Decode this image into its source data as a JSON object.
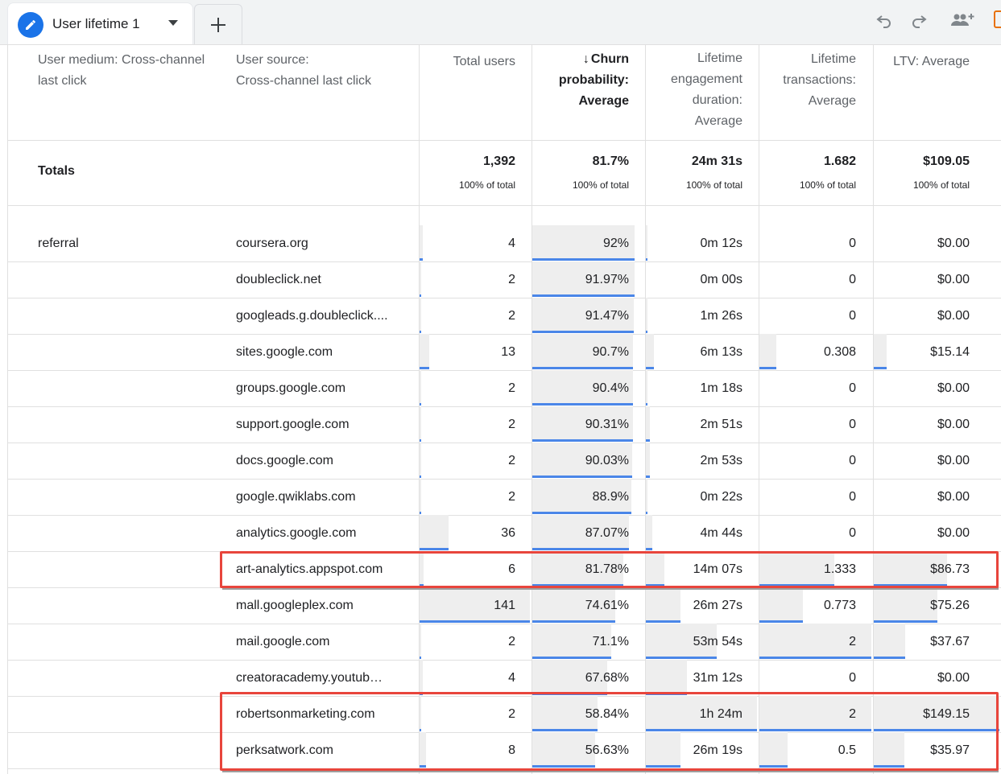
{
  "tab": {
    "label": "User lifetime 1"
  },
  "toolbar": {
    "icons": [
      "pencil-icon",
      "caret-down-icon",
      "add-icon",
      "undo-icon",
      "redo-icon",
      "share-people-icon",
      "export-icon"
    ]
  },
  "headers": {
    "medium": "User medium: Cross-channel last click",
    "source": "User source: Cross-channel last click",
    "total_users": "Total users",
    "churn": "Churn probability: Average",
    "engagement": "Lifetime engagement duration: Average",
    "transactions": "Lifetime transactions: Average",
    "ltv": "LTV: Average"
  },
  "header_lines": {
    "medium_1": "User medium: Cross-channel",
    "medium_2": "last click",
    "source_1": "User source:",
    "source_2": "Cross-channel last click",
    "churn_1": "Churn",
    "churn_2": "probability:",
    "churn_3": "Average",
    "engage_1": "Lifetime",
    "engage_2": "engagement",
    "engage_3": "duration:",
    "engage_4": "Average",
    "trans_1": "Lifetime",
    "trans_2": "transactions:",
    "trans_3": "Average"
  },
  "sort_arrow": "↓",
  "totals": {
    "label": "Totals",
    "total_users": "1,392",
    "churn": "81.7%",
    "engagement": "24m 31s",
    "transactions": "1.682",
    "ltv": "$109.05",
    "sub": "100% of total"
  },
  "medium_value": "referral",
  "rows": [
    {
      "source": "coursera.org",
      "users": "4",
      "churn": "92%",
      "engagement": "0m 12s",
      "transactions": "0",
      "ltv": "$0.00"
    },
    {
      "source": "doubleclick.net",
      "users": "2",
      "churn": "91.97%",
      "engagement": "0m 00s",
      "transactions": "0",
      "ltv": "$0.00"
    },
    {
      "source": "googleads.g.doubleclick....",
      "users": "2",
      "churn": "91.47%",
      "engagement": "1m 26s",
      "transactions": "0",
      "ltv": "$0.00"
    },
    {
      "source": "sites.google.com",
      "users": "13",
      "churn": "90.7%",
      "engagement": "6m 13s",
      "transactions": "0.308",
      "ltv": "$15.14"
    },
    {
      "source": "groups.google.com",
      "users": "2",
      "churn": "90.4%",
      "engagement": "1m 18s",
      "transactions": "0",
      "ltv": "$0.00"
    },
    {
      "source": "support.google.com",
      "users": "2",
      "churn": "90.31%",
      "engagement": "2m 51s",
      "transactions": "0",
      "ltv": "$0.00"
    },
    {
      "source": "docs.google.com",
      "users": "2",
      "churn": "90.03%",
      "engagement": "2m 53s",
      "transactions": "0",
      "ltv": "$0.00"
    },
    {
      "source": "google.qwiklabs.com",
      "users": "2",
      "churn": "88.9%",
      "engagement": "0m 22s",
      "transactions": "0",
      "ltv": "$0.00"
    },
    {
      "source": "analytics.google.com",
      "users": "36",
      "churn": "87.07%",
      "engagement": "4m 44s",
      "transactions": "0",
      "ltv": "$0.00"
    },
    {
      "source": "art-analytics.appspot.com",
      "users": "6",
      "churn": "81.78%",
      "engagement": "14m 07s",
      "transactions": "1.333",
      "ltv": "$86.73"
    },
    {
      "source": "mall.googleplex.com",
      "users": "141",
      "churn": "74.61%",
      "engagement": "26m 27s",
      "transactions": "0.773",
      "ltv": "$75.26"
    },
    {
      "source": "mail.google.com",
      "users": "2",
      "churn": "71.1%",
      "engagement": "53m 54s",
      "transactions": "2",
      "ltv": "$37.67"
    },
    {
      "source": "creatoracademy.youtub…",
      "users": "4",
      "churn": "67.68%",
      "engagement": "31m 12s",
      "transactions": "0",
      "ltv": "$0.00"
    },
    {
      "source": "robertsonmarketing.com",
      "users": "2",
      "churn": "58.84%",
      "engagement": "1h 24m",
      "transactions": "2",
      "ltv": "$149.15"
    },
    {
      "source": "perksatwork.com",
      "users": "8",
      "churn": "56.63%",
      "engagement": "26m 19s",
      "transactions": "0.5",
      "ltv": "$35.97"
    }
  ],
  "bars": {
    "users": [
      0.03,
      0.01,
      0.01,
      0.09,
      0.01,
      0.01,
      0.01,
      0.01,
      0.26,
      0.04,
      1.0,
      0.01,
      0.03,
      0.01,
      0.06
    ],
    "churn": [
      0.92,
      0.9197,
      0.9147,
      0.907,
      0.904,
      0.9031,
      0.9003,
      0.889,
      0.8707,
      0.8178,
      0.7461,
      0.711,
      0.6768,
      0.5884,
      0.5663
    ],
    "engagement": [
      0.002,
      0.0,
      0.017,
      0.074,
      0.015,
      0.034,
      0.035,
      0.004,
      0.056,
      0.168,
      0.315,
      0.64,
      0.371,
      1.0,
      0.313
    ],
    "transactions": [
      0,
      0,
      0,
      0.154,
      0,
      0,
      0,
      0,
      0,
      0.667,
      0.387,
      1.0,
      0,
      1.0,
      0.25
    ],
    "ltv": [
      0,
      0,
      0,
      0.102,
      0,
      0,
      0,
      0,
      0,
      0.582,
      0.505,
      0.253,
      0,
      1.0,
      0.241
    ]
  },
  "highlighted_rows": [
    "art-analytics.appspot.com",
    "robertsonmarketing.com",
    "perksatwork.com"
  ],
  "colors": {
    "accent": "#1a73e8",
    "bar_line": "#4a86e8",
    "bar_fill": "#eeeeee",
    "highlight": "#e8453c"
  }
}
